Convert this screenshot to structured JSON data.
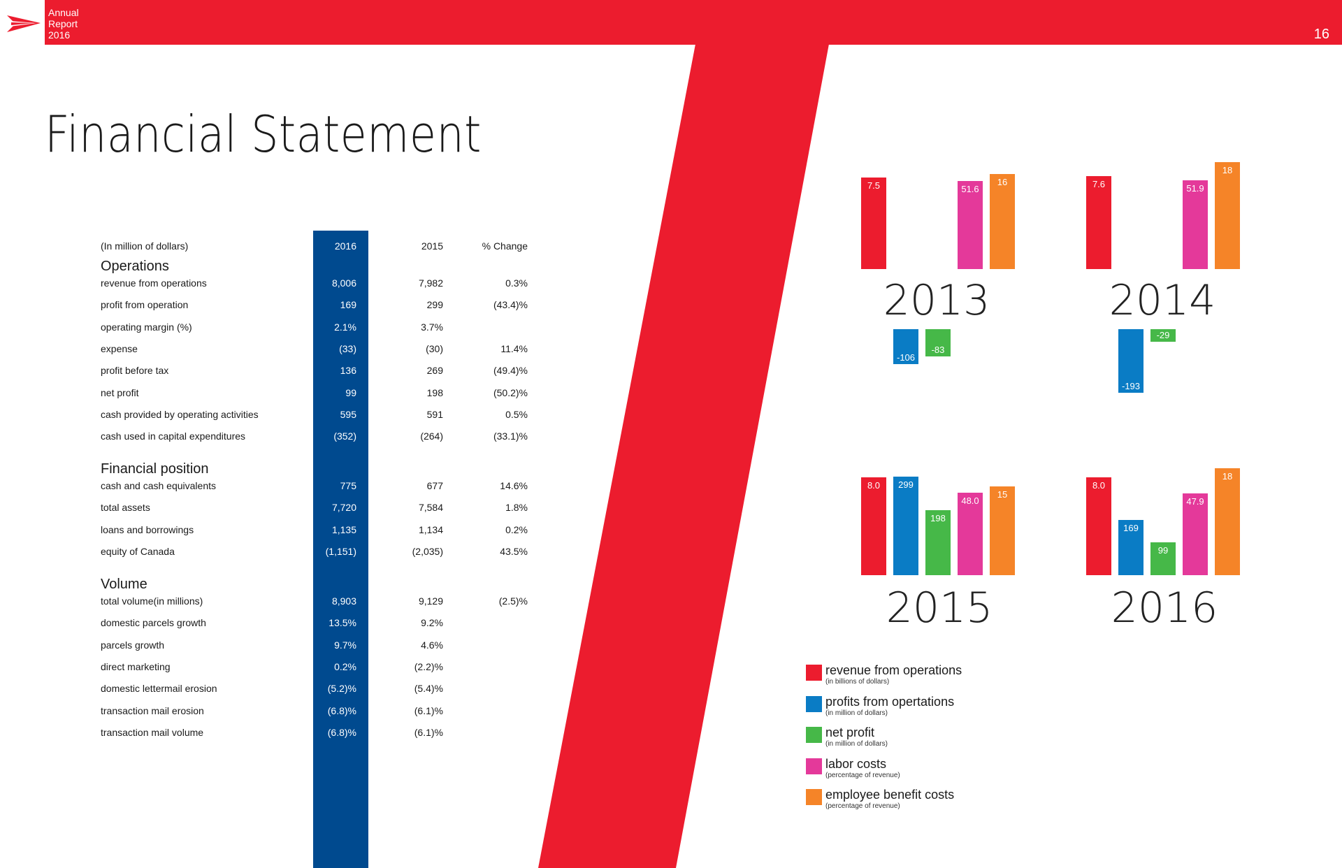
{
  "header": {
    "brand_lines": [
      "Annual",
      "Report",
      "2016"
    ],
    "page_number": "16",
    "logo_icon": "postal-arrow-icon"
  },
  "page": {
    "title": "Financial Statement"
  },
  "colors": {
    "red": "#ec1c2e",
    "blue": "#004a8f",
    "revenue": "#ec1c2e",
    "profit": "#0a7cc5",
    "net": "#46b848",
    "labor": "#e4399a",
    "benefit": "#f58428"
  },
  "table": {
    "unit_label": "(In million of dollars)",
    "col_2016": "2016",
    "col_2015": "2015",
    "col_change": "% Change",
    "sections": [
      {
        "name": "Operations",
        "rows": [
          {
            "label": "revenue from operations",
            "v2016": "8,006",
            "v2015": "7,982",
            "change": "0.3%"
          },
          {
            "label": "profit from operation",
            "v2016": "169",
            "v2015": "299",
            "change": "(43.4)%"
          },
          {
            "label": "operating margin (%)",
            "v2016": "2.1%",
            "v2015": "3.7%",
            "change": ""
          },
          {
            "label": "expense",
            "v2016": "(33)",
            "v2015": "(30)",
            "change": "11.4%"
          },
          {
            "label": "profit before tax",
            "v2016": "136",
            "v2015": "269",
            "change": "(49.4)%"
          },
          {
            "label": "net profit",
            "v2016": "99",
            "v2015": "198",
            "change": "(50.2)%"
          },
          {
            "label": "cash provided by operating activities",
            "v2016": "595",
            "v2015": "591",
            "change": "0.5%"
          },
          {
            "label": "cash used in capital expenditures",
            "v2016": "(352)",
            "v2015": "(264)",
            "change": "(33.1)%"
          }
        ]
      },
      {
        "name": "Financial position",
        "rows": [
          {
            "label": "cash and cash equivalents",
            "v2016": "775",
            "v2015": "677",
            "change": "14.6%"
          },
          {
            "label": "total assets",
            "v2016": "7,720",
            "v2015": "7,584",
            "change": "1.8%"
          },
          {
            "label": "loans and borrowings",
            "v2016": "1,135",
            "v2015": "1,134",
            "change": "0.2%"
          },
          {
            "label": "equity of Canada",
            "v2016": "(1,151)",
            "v2015": "(2,035)",
            "change": "43.5%"
          }
        ]
      },
      {
        "name": "Volume",
        "rows": [
          {
            "label": "total volume(in millions)",
            "v2016": "8,903",
            "v2015": "9,129",
            "change": "(2.5)%"
          },
          {
            "label": "domestic parcels growth",
            "v2016": "13.5%",
            "v2015": "9.2%",
            "change": ""
          },
          {
            "label": "parcels growth",
            "v2016": "9.7%",
            "v2015": "4.6%",
            "change": ""
          },
          {
            "label": "direct marketing",
            "v2016": "0.2%",
            "v2015": "(2.2)%",
            "change": ""
          },
          {
            "label": "domestic lettermail erosion",
            "v2016": "(5.2)%",
            "v2015": "(5.4)%",
            "change": ""
          },
          {
            "label": "transaction mail erosion",
            "v2016": "(6.8)%",
            "v2015": "(6.1)%",
            "change": ""
          },
          {
            "label": "transaction mail volume",
            "v2016": "(6.8)%",
            "v2015": "(6.1)%",
            "change": ""
          }
        ]
      }
    ]
  },
  "chart_data": [
    {
      "type": "bar",
      "title": "2013",
      "categories": [
        "revenue from operations",
        "profits from opertations",
        "net profit",
        "labor costs",
        "employee benefit costs"
      ],
      "values": [
        7.5,
        -106,
        -83,
        51.6,
        16
      ],
      "labels": [
        "7.5",
        "-106",
        "-83",
        "51.6",
        "16"
      ]
    },
    {
      "type": "bar",
      "title": "2014",
      "categories": [
        "revenue from operations",
        "profits from opertations",
        "net profit",
        "labor costs",
        "employee benefit costs"
      ],
      "values": [
        7.6,
        -193,
        -29,
        51.9,
        18
      ],
      "labels": [
        "7.6",
        "-193",
        "-29",
        "51.9",
        "18"
      ]
    },
    {
      "type": "bar",
      "title": "2015",
      "categories": [
        "revenue from operations",
        "profits from opertations",
        "net profit",
        "labor costs",
        "employee benefit costs"
      ],
      "values": [
        8.0,
        299,
        198,
        48.0,
        15
      ],
      "labels": [
        "8.0",
        "299",
        "198",
        "48.0",
        "15"
      ]
    },
    {
      "type": "bar",
      "title": "2016",
      "categories": [
        "revenue from operations",
        "profits from opertations",
        "net profit",
        "labor costs",
        "employee benefit costs"
      ],
      "values": [
        8.0,
        169,
        99,
        47.9,
        18
      ],
      "labels": [
        "8.0",
        "169",
        "99",
        "47.9",
        "18"
      ]
    }
  ],
  "legend": [
    {
      "label": "revenue from operations",
      "sub": "(in billions of dollars)",
      "color": "#ec1c2e"
    },
    {
      "label": "profits from opertations",
      "sub": "(in million of dollars)",
      "color": "#0a7cc5"
    },
    {
      "label": "net profit",
      "sub": "(in million of dollars)",
      "color": "#46b848"
    },
    {
      "label": "labor costs",
      "sub": "(percentage of revenue)",
      "color": "#e4399a"
    },
    {
      "label": "employee benefit costs",
      "sub": "(percentage of revenue)",
      "color": "#f58428"
    }
  ]
}
